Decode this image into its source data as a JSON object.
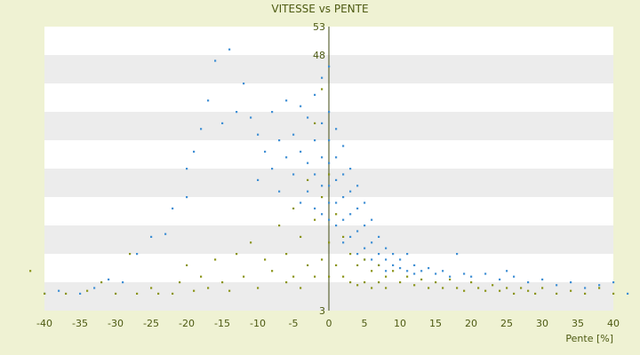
{
  "chart_data": {
    "type": "scatter",
    "title": "VITESSE vs PENTE",
    "xlabel": "Pente [%]",
    "ylabel": "",
    "xlim": [
      -40,
      40
    ],
    "ylim": [
      3,
      53
    ],
    "x_ticks": [
      -40,
      -35,
      -30,
      -25,
      -20,
      -15,
      -10,
      -5,
      0,
      5,
      10,
      15,
      20,
      25,
      30,
      35,
      40
    ],
    "y_ticks": [
      3,
      8,
      13,
      18,
      23,
      28,
      33,
      38,
      43,
      48,
      53
    ],
    "y_tick_labels": [
      {
        "value": 3,
        "label": "3"
      },
      {
        "value": 48,
        "label": "48"
      },
      {
        "value": 53,
        "label": "53"
      }
    ],
    "grid": "horizontal bands",
    "series": [
      {
        "color": "#3f8fd4",
        "points": [
          [
            -40,
            6
          ],
          [
            -38,
            6.5
          ],
          [
            -35,
            6
          ],
          [
            -33,
            7
          ],
          [
            -31,
            8.5
          ],
          [
            -29,
            8
          ],
          [
            -27,
            13
          ],
          [
            -25,
            16
          ],
          [
            -23,
            16.5
          ],
          [
            -22,
            21
          ],
          [
            -20,
            23
          ],
          [
            -20,
            28
          ],
          [
            -19,
            31
          ],
          [
            -18,
            35
          ],
          [
            -17,
            40
          ],
          [
            -16,
            47
          ],
          [
            -15,
            36
          ],
          [
            -14,
            49
          ],
          [
            -13,
            38
          ],
          [
            -12,
            43
          ],
          [
            -11,
            37
          ],
          [
            -10,
            34
          ],
          [
            -10,
            26
          ],
          [
            -9,
            31
          ],
          [
            -8,
            38
          ],
          [
            -8,
            28
          ],
          [
            -7,
            33
          ],
          [
            -7,
            24
          ],
          [
            -6,
            40
          ],
          [
            -6,
            30
          ],
          [
            -5,
            34
          ],
          [
            -5,
            27
          ],
          [
            -4,
            39
          ],
          [
            -4,
            31
          ],
          [
            -4,
            22
          ],
          [
            -3,
            37
          ],
          [
            -3,
            29
          ],
          [
            -3,
            24
          ],
          [
            -2,
            41
          ],
          [
            -2,
            33
          ],
          [
            -2,
            27
          ],
          [
            -2,
            21
          ],
          [
            -1,
            44
          ],
          [
            -1,
            36
          ],
          [
            -1,
            30
          ],
          [
            -1,
            25
          ],
          [
            -1,
            20
          ],
          [
            0,
            46
          ],
          [
            0,
            38
          ],
          [
            0,
            33
          ],
          [
            0,
            29
          ],
          [
            0,
            25
          ],
          [
            0,
            22
          ],
          [
            0,
            19
          ],
          [
            1,
            35
          ],
          [
            1,
            30
          ],
          [
            1,
            26
          ],
          [
            1,
            22
          ],
          [
            1,
            18
          ],
          [
            2,
            32
          ],
          [
            2,
            27
          ],
          [
            2,
            23
          ],
          [
            2,
            19
          ],
          [
            2,
            15
          ],
          [
            3,
            28
          ],
          [
            3,
            24
          ],
          [
            3,
            20
          ],
          [
            3,
            16
          ],
          [
            4,
            25
          ],
          [
            4,
            21
          ],
          [
            4,
            17
          ],
          [
            4,
            13
          ],
          [
            5,
            22
          ],
          [
            5,
            18
          ],
          [
            5,
            14
          ],
          [
            5,
            12
          ],
          [
            6,
            19
          ],
          [
            6,
            15
          ],
          [
            6,
            12
          ],
          [
            7,
            16
          ],
          [
            7,
            13
          ],
          [
            7,
            11
          ],
          [
            8,
            14
          ],
          [
            8,
            12
          ],
          [
            8,
            10
          ],
          [
            9,
            13
          ],
          [
            9,
            11
          ],
          [
            10,
            12
          ],
          [
            10,
            10.5
          ],
          [
            11,
            13
          ],
          [
            11,
            10
          ],
          [
            12,
            11
          ],
          [
            12,
            9.5
          ],
          [
            13,
            10
          ],
          [
            14,
            10.5
          ],
          [
            15,
            9.5
          ],
          [
            16,
            10
          ],
          [
            17,
            9
          ],
          [
            18,
            13
          ],
          [
            19,
            9.5
          ],
          [
            20,
            9
          ],
          [
            22,
            9.5
          ],
          [
            24,
            8.5
          ],
          [
            25,
            10
          ],
          [
            26,
            9
          ],
          [
            28,
            8
          ],
          [
            30,
            8.5
          ],
          [
            32,
            7.5
          ],
          [
            34,
            8
          ],
          [
            36,
            7
          ],
          [
            38,
            7.5
          ],
          [
            40,
            8
          ],
          [
            42,
            6
          ]
        ]
      },
      {
        "color": "#8a9418",
        "points": [
          [
            -42,
            10
          ],
          [
            -40,
            6
          ],
          [
            -37,
            6
          ],
          [
            -34,
            6.5
          ],
          [
            -32,
            8
          ],
          [
            -30,
            6
          ],
          [
            -28,
            13
          ],
          [
            -27,
            6
          ],
          [
            -25,
            7
          ],
          [
            -24,
            6
          ],
          [
            -22,
            6
          ],
          [
            -21,
            8
          ],
          [
            -20,
            11
          ],
          [
            -19,
            6.5
          ],
          [
            -18,
            9
          ],
          [
            -17,
            7
          ],
          [
            -16,
            12
          ],
          [
            -15,
            8
          ],
          [
            -14,
            6.5
          ],
          [
            -13,
            13
          ],
          [
            -12,
            9
          ],
          [
            -11,
            15
          ],
          [
            -10,
            7
          ],
          [
            -9,
            12
          ],
          [
            -8,
            10
          ],
          [
            -7,
            18
          ],
          [
            -6,
            8
          ],
          [
            -6,
            13
          ],
          [
            -5,
            21
          ],
          [
            -5,
            9
          ],
          [
            -4,
            16
          ],
          [
            -4,
            7
          ],
          [
            -3,
            26
          ],
          [
            -3,
            11
          ],
          [
            -2,
            36
          ],
          [
            -2,
            19
          ],
          [
            -2,
            9
          ],
          [
            -1,
            42
          ],
          [
            -1,
            23
          ],
          [
            -1,
            12
          ],
          [
            0,
            27
          ],
          [
            0,
            15
          ],
          [
            0,
            9
          ],
          [
            1,
            20
          ],
          [
            1,
            11
          ],
          [
            2,
            16
          ],
          [
            2,
            9
          ],
          [
            3,
            13
          ],
          [
            3,
            8
          ],
          [
            4,
            11
          ],
          [
            4,
            7.5
          ],
          [
            5,
            12
          ],
          [
            5,
            8
          ],
          [
            6,
            10
          ],
          [
            6,
            7
          ],
          [
            7,
            11
          ],
          [
            7,
            8
          ],
          [
            8,
            9
          ],
          [
            8,
            7
          ],
          [
            9,
            10
          ],
          [
            10,
            8
          ],
          [
            11,
            9
          ],
          [
            12,
            7.5
          ],
          [
            13,
            8.5
          ],
          [
            14,
            7
          ],
          [
            15,
            8
          ],
          [
            16,
            7
          ],
          [
            17,
            8.5
          ],
          [
            18,
            7
          ],
          [
            19,
            6.5
          ],
          [
            20,
            8
          ],
          [
            21,
            7
          ],
          [
            22,
            6.5
          ],
          [
            23,
            7.5
          ],
          [
            24,
            6.5
          ],
          [
            25,
            7
          ],
          [
            26,
            6
          ],
          [
            27,
            7
          ],
          [
            28,
            6.5
          ],
          [
            29,
            6
          ],
          [
            30,
            7
          ],
          [
            32,
            6
          ],
          [
            34,
            6.5
          ],
          [
            36,
            6
          ],
          [
            38,
            7
          ],
          [
            40,
            6
          ]
        ]
      }
    ]
  }
}
